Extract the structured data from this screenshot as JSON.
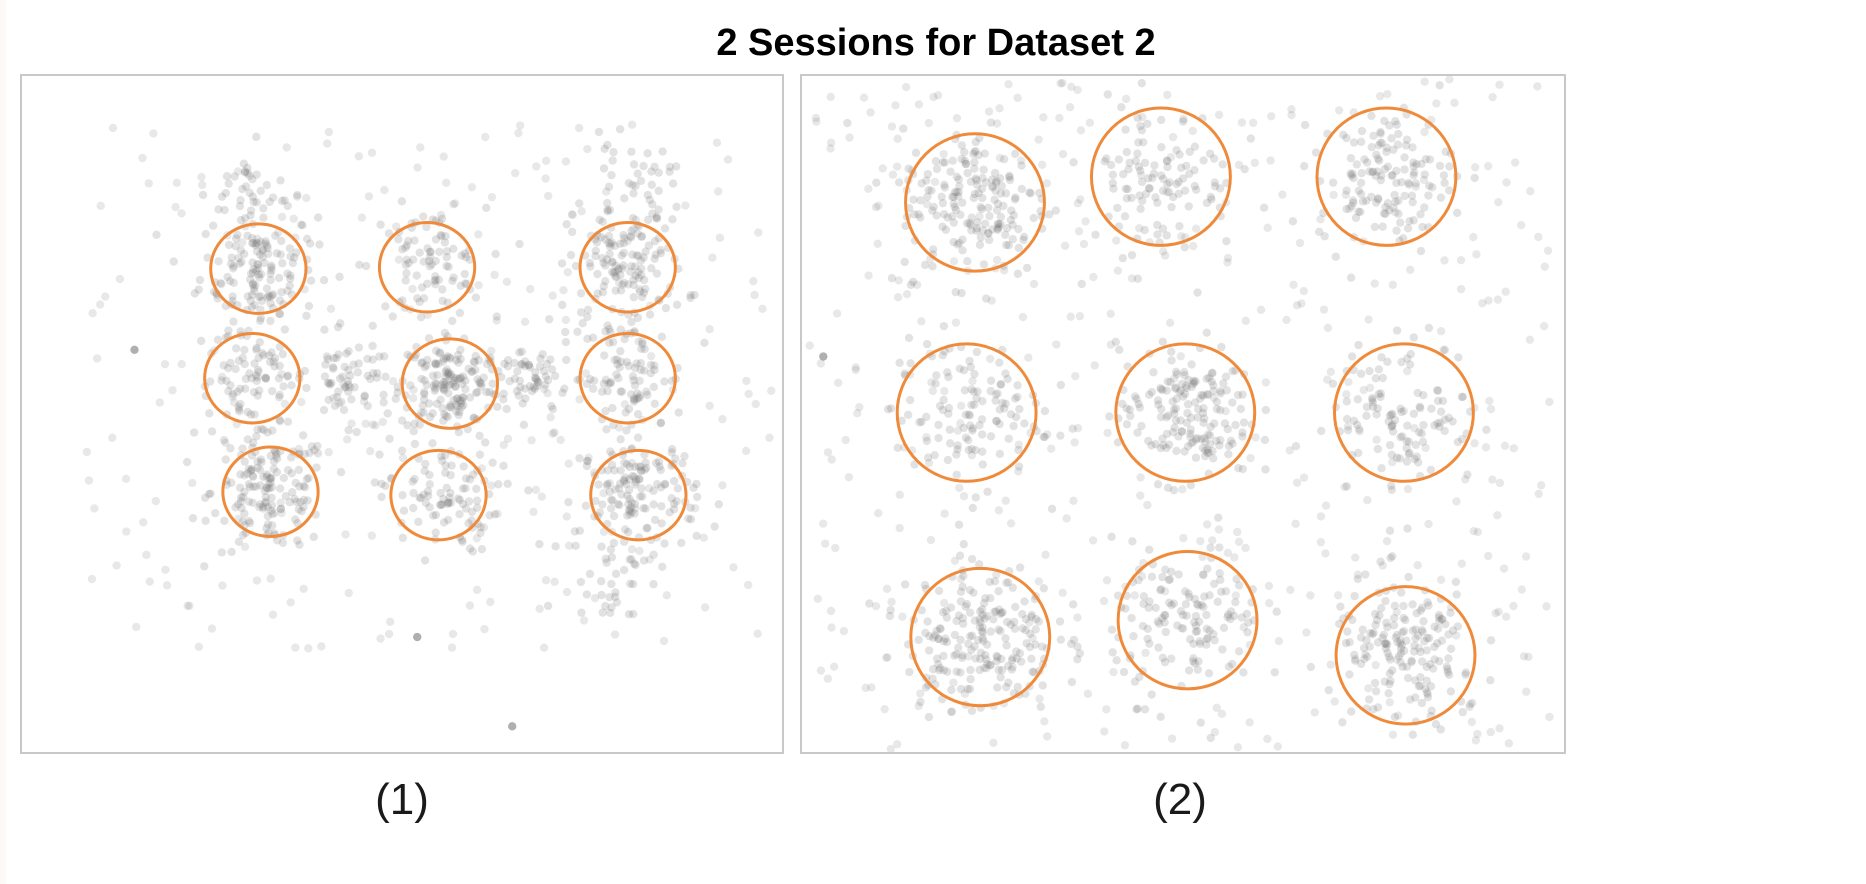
{
  "figure": {
    "title": "2 Sessions for Dataset 2"
  },
  "colors": {
    "point": "#6e6e6e",
    "circle": "#ef8a3a",
    "frame": "#c8c8c8"
  },
  "chart_data": [
    {
      "type": "scatter",
      "caption": "(1)",
      "title": "",
      "xlabel": "",
      "ylabel": "",
      "grid": false,
      "xlim": [
        0,
        1
      ],
      "ylim": [
        0,
        1
      ],
      "annotations": "9 circled clusters in a 3 x 3 grid",
      "circles": [
        {
          "x": 0.311,
          "y": 0.715,
          "r": 0.064
        },
        {
          "x": 0.303,
          "y": 0.553,
          "r": 0.064
        },
        {
          "x": 0.327,
          "y": 0.385,
          "r": 0.064
        },
        {
          "x": 0.533,
          "y": 0.717,
          "r": 0.064
        },
        {
          "x": 0.563,
          "y": 0.545,
          "r": 0.064
        },
        {
          "x": 0.548,
          "y": 0.38,
          "r": 0.064
        },
        {
          "x": 0.797,
          "y": 0.717,
          "r": 0.064
        },
        {
          "x": 0.797,
          "y": 0.553,
          "r": 0.064
        },
        {
          "x": 0.811,
          "y": 0.38,
          "r": 0.064
        }
      ],
      "clusters": [
        {
          "x": 0.311,
          "y": 0.715,
          "spread": 0.07,
          "n": 140
        },
        {
          "x": 0.303,
          "y": 0.553,
          "spread": 0.07,
          "n": 90
        },
        {
          "x": 0.327,
          "y": 0.385,
          "spread": 0.07,
          "n": 150
        },
        {
          "x": 0.533,
          "y": 0.717,
          "spread": 0.07,
          "n": 90
        },
        {
          "x": 0.563,
          "y": 0.545,
          "spread": 0.06,
          "n": 150
        },
        {
          "x": 0.548,
          "y": 0.38,
          "spread": 0.07,
          "n": 100
        },
        {
          "x": 0.797,
          "y": 0.717,
          "spread": 0.07,
          "n": 130
        },
        {
          "x": 0.797,
          "y": 0.553,
          "spread": 0.07,
          "n": 90
        },
        {
          "x": 0.811,
          "y": 0.38,
          "spread": 0.07,
          "n": 140
        },
        {
          "x": 0.43,
          "y": 0.55,
          "spread": 0.05,
          "n": 60
        },
        {
          "x": 0.67,
          "y": 0.55,
          "spread": 0.05,
          "n": 60
        },
        {
          "x": 0.3,
          "y": 0.83,
          "spread": 0.05,
          "n": 35
        },
        {
          "x": 0.8,
          "y": 0.84,
          "spread": 0.05,
          "n": 40
        },
        {
          "x": 0.78,
          "y": 0.26,
          "spread": 0.06,
          "n": 30
        }
      ],
      "background_points": {
        "n": 250,
        "xlim": [
          0.08,
          0.99
        ],
        "ylim": [
          0.15,
          0.93
        ]
      },
      "outliers": [
        {
          "x": 0.148,
          "y": 0.595
        },
        {
          "x": 0.645,
          "y": 0.038
        },
        {
          "x": 0.52,
          "y": 0.17
        }
      ]
    },
    {
      "type": "scatter",
      "caption": "(2)",
      "title": "",
      "xlabel": "",
      "ylabel": "",
      "grid": false,
      "xlim": [
        0,
        1
      ],
      "ylim": [
        0,
        1
      ],
      "annotations": "9 circled clusters in a 3 x 3 grid",
      "circles": [
        {
          "x": 0.227,
          "y": 0.813,
          "r": 0.093
        },
        {
          "x": 0.471,
          "y": 0.851,
          "r": 0.093
        },
        {
          "x": 0.767,
          "y": 0.851,
          "r": 0.093
        },
        {
          "x": 0.216,
          "y": 0.502,
          "r": 0.093
        },
        {
          "x": 0.503,
          "y": 0.502,
          "r": 0.093
        },
        {
          "x": 0.79,
          "y": 0.502,
          "r": 0.093
        },
        {
          "x": 0.234,
          "y": 0.17,
          "r": 0.093
        },
        {
          "x": 0.506,
          "y": 0.195,
          "r": 0.093
        },
        {
          "x": 0.792,
          "y": 0.143,
          "r": 0.093
        }
      ],
      "clusters": [
        {
          "x": 0.227,
          "y": 0.813,
          "spread": 0.09,
          "n": 180
        },
        {
          "x": 0.471,
          "y": 0.851,
          "spread": 0.09,
          "n": 110
        },
        {
          "x": 0.767,
          "y": 0.851,
          "spread": 0.08,
          "n": 140
        },
        {
          "x": 0.216,
          "y": 0.502,
          "spread": 0.09,
          "n": 120
        },
        {
          "x": 0.503,
          "y": 0.502,
          "spread": 0.08,
          "n": 170
        },
        {
          "x": 0.79,
          "y": 0.502,
          "spread": 0.09,
          "n": 110
        },
        {
          "x": 0.234,
          "y": 0.17,
          "spread": 0.09,
          "n": 200
        },
        {
          "x": 0.506,
          "y": 0.195,
          "spread": 0.09,
          "n": 140
        },
        {
          "x": 0.792,
          "y": 0.143,
          "spread": 0.09,
          "n": 170
        }
      ],
      "background_points": {
        "n": 420,
        "xlim": [
          0.01,
          0.99
        ],
        "ylim": [
          0.0,
          1.0
        ]
      },
      "outliers": [
        {
          "x": 0.028,
          "y": 0.585
        }
      ]
    }
  ]
}
